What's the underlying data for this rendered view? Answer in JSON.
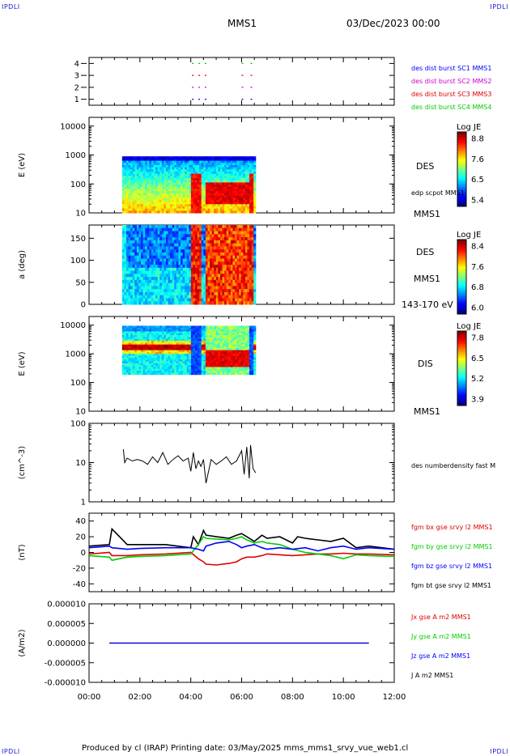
{
  "corner_labels": [
    "IPDLI",
    "IPDLI",
    "IPDLI",
    "IPDLI"
  ],
  "header": {
    "spacecraft": "MMS1",
    "datetime": "03/Dec/2023 00:00"
  },
  "footer": "Produced by cl (IRAP)   Printing date: 03/May/2025   mms_mms1_srvy_vue_web1.cl",
  "x_axis": {
    "ticks": [
      "00:00",
      "02:00",
      "04:00",
      "06:00",
      "08:00",
      "10:00",
      "12:00"
    ],
    "range_hours": [
      0,
      12
    ]
  },
  "colors": {
    "mms1": "#0000ff",
    "mms2": "#cc00cc",
    "mms3": "#dd0000",
    "mms4": "#00cc00",
    "bx": "#dd0000",
    "by": "#00cc00",
    "bz": "#0000ff",
    "bt": "#000000"
  },
  "chart_data": [
    {
      "type": "scatter",
      "panel": "burst",
      "yticks": [
        "1",
        "2",
        "3",
        "4"
      ],
      "ylim": [
        0.5,
        4.5
      ],
      "legend": [
        {
          "label": "des dist burst SC1 MMS1",
          "color": "#0000ff"
        },
        {
          "label": "des dist burst SC2 MMS2",
          "color": "#cc00cc"
        },
        {
          "label": "des dist burst SC3 MMS3",
          "color": "#dd0000"
        },
        {
          "label": "des dist burst SC4 MMS4",
          "color": "#00cc00"
        }
      ],
      "series": [
        {
          "name": "des dist burst SC1 MMS1",
          "y": 1,
          "intervals": [
            [
              4.05,
              4.15
            ],
            [
              4.3,
              4.4
            ],
            [
              4.55,
              4.65
            ],
            [
              6.0,
              6.15
            ],
            [
              6.35,
              6.45
            ]
          ],
          "color": "#0000ff"
        },
        {
          "name": "des dist burst SC2 MMS2",
          "y": 2,
          "intervals": [
            [
              4.05,
              4.15
            ],
            [
              4.3,
              4.4
            ],
            [
              4.55,
              4.65
            ],
            [
              6.0,
              6.15
            ],
            [
              6.35,
              6.45
            ]
          ],
          "color": "#cc00cc"
        },
        {
          "name": "des dist burst SC3 MMS3",
          "y": 3,
          "intervals": [
            [
              4.05,
              4.15
            ],
            [
              4.3,
              4.4
            ],
            [
              4.55,
              4.65
            ],
            [
              6.0,
              6.15
            ],
            [
              6.35,
              6.45
            ]
          ],
          "color": "#dd0000"
        },
        {
          "name": "des dist burst SC4 MMS4",
          "y": 4,
          "intervals": [
            [
              4.05,
              4.15
            ],
            [
              4.3,
              4.4
            ],
            [
              4.55,
              4.65
            ],
            [
              6.0,
              6.15
            ],
            [
              6.35,
              6.45
            ]
          ],
          "color": "#00cc00"
        }
      ]
    },
    {
      "type": "heatmap",
      "panel": "des-energy",
      "ylabel": "E (eV)",
      "yscale": "log",
      "ylim": [
        10,
        20000
      ],
      "yticks": [
        "10",
        "100",
        "1000",
        "10000"
      ],
      "side_labels": [
        "DES",
        "edp scpot MMS1",
        "MMS1"
      ],
      "colorbar": {
        "title": "Log JE",
        "ticks": [
          "8.8",
          "7.6",
          "6.5",
          "5.4"
        ],
        "range": [
          5.4,
          8.8
        ]
      },
      "data_range_hours": [
        1.3,
        6.55
      ]
    },
    {
      "type": "heatmap",
      "panel": "des-pitch",
      "ylabel": "a (deg)",
      "ylim": [
        0,
        180
      ],
      "yticks": [
        "0",
        "50",
        "100",
        "150"
      ],
      "side_labels": [
        "DES",
        "MMS1",
        "143-170 eV"
      ],
      "colorbar": {
        "title": "Log JE",
        "ticks": [
          "8.4",
          "7.6",
          "6.8",
          "6.0"
        ],
        "range": [
          6.0,
          8.4
        ]
      },
      "data_range_hours": [
        1.3,
        6.55
      ]
    },
    {
      "type": "heatmap",
      "panel": "dis-energy",
      "ylabel": "E (eV)",
      "yscale": "log",
      "ylim": [
        10,
        20000
      ],
      "yticks": [
        "10",
        "100",
        "1000",
        "10000"
      ],
      "side_labels": [
        "DIS",
        "MMS1"
      ],
      "colorbar": {
        "title": "Log JE",
        "ticks": [
          "7.8",
          "6.5",
          "5.2",
          "3.9"
        ],
        "range": [
          3.9,
          7.8
        ]
      },
      "data_range_hours": [
        1.3,
        6.55
      ]
    },
    {
      "type": "line",
      "panel": "density",
      "ylabel": "(cm^-3)",
      "yscale": "log",
      "ylim": [
        1,
        100
      ],
      "yticks": [
        "1",
        "10",
        "100"
      ],
      "legend": [
        {
          "label": "des numberdensity fast M",
          "color": "#000000"
        }
      ],
      "series": [
        {
          "name": "des numberdensity fast M",
          "x": [
            1.35,
            1.4,
            1.5,
            1.7,
            1.9,
            2.1,
            2.3,
            2.5,
            2.7,
            2.9,
            3.1,
            3.3,
            3.5,
            3.7,
            3.9,
            4.0,
            4.1,
            4.2,
            4.3,
            4.4,
            4.5,
            4.6,
            4.8,
            5.0,
            5.2,
            5.4,
            5.6,
            5.8,
            6.0,
            6.05,
            6.1,
            6.2,
            6.3,
            6.35,
            6.45,
            6.55
          ],
          "y": [
            22,
            10,
            13,
            11,
            12,
            11,
            9,
            14,
            10,
            18,
            9,
            12,
            15,
            11,
            13,
            6,
            18,
            7,
            11,
            8,
            12,
            3,
            12,
            9,
            11,
            14,
            9,
            11,
            20,
            10,
            5,
            25,
            4,
            28,
            7,
            5.5
          ]
        }
      ]
    },
    {
      "type": "line",
      "panel": "fgm",
      "ylabel": "(nT)",
      "ylim": [
        -50,
        50
      ],
      "yticks": [
        "-40",
        "-20",
        "0",
        "20",
        "40"
      ],
      "legend": [
        {
          "label": "fgm bx gse srvy l2 MMS1",
          "color": "#dd0000"
        },
        {
          "label": "fgm by gse srvy l2 MMS1",
          "color": "#00cc00"
        },
        {
          "label": "fgm bz gse srvy l2 MMS1",
          "color": "#0000ff"
        },
        {
          "label": "fgm bt gse srvy l2 MMS1",
          "color": "#000000"
        }
      ],
      "series": [
        {
          "name": "fgm bt gse srvy l2 MMS1",
          "x": [
            0,
            0.8,
            0.9,
            1.5,
            2.0,
            3.0,
            4.0,
            4.1,
            4.3,
            4.5,
            4.6,
            5.0,
            5.5,
            5.8,
            6.0,
            6.2,
            6.5,
            6.8,
            7.0,
            7.5,
            8.0,
            8.2,
            8.5,
            9.0,
            9.5,
            10.0,
            10.5,
            11.0,
            12.0
          ],
          "y": [
            8,
            10,
            30,
            10,
            10,
            10,
            6,
            20,
            10,
            28,
            22,
            20,
            18,
            22,
            24,
            20,
            14,
            22,
            18,
            20,
            12,
            20,
            18,
            16,
            14,
            18,
            6,
            8,
            4
          ]
        },
        {
          "name": "fgm bx gse srvy l2 MMS1",
          "x": [
            0,
            0.8,
            0.9,
            1.5,
            2.0,
            3.0,
            4.0,
            4.3,
            4.5,
            4.6,
            5.0,
            5.5,
            5.8,
            6.0,
            6.2,
            6.5,
            6.8,
            7.0,
            7.5,
            8.0,
            8.5,
            9.0,
            9.5,
            10.0,
            10.5,
            11.0,
            12.0
          ],
          "y": [
            -2,
            0,
            -4,
            -4,
            -3,
            -2,
            0,
            -8,
            -12,
            -15,
            -16,
            -14,
            -12,
            -8,
            -6,
            -6,
            -4,
            -2,
            -3,
            -4,
            -3,
            -2,
            -2,
            -1,
            -2,
            -2,
            -3
          ]
        },
        {
          "name": "fgm by gse srvy l2 MMS1",
          "x": [
            0,
            0.8,
            0.9,
            1.5,
            2.0,
            3.0,
            4.0,
            4.3,
            4.5,
            4.6,
            5.0,
            5.5,
            5.8,
            6.0,
            6.2,
            6.5,
            6.8,
            7.0,
            7.5,
            8.0,
            8.5,
            9.0,
            9.5,
            10.0,
            10.5,
            11.0,
            12.0
          ],
          "y": [
            -4,
            -6,
            -10,
            -6,
            -5,
            -4,
            -2,
            10,
            20,
            18,
            17,
            16,
            18,
            20,
            16,
            12,
            14,
            12,
            10,
            4,
            0,
            -2,
            -4,
            -8,
            -3,
            -4,
            -5
          ]
        },
        {
          "name": "fgm bz gse srvy l2 MMS1",
          "x": [
            0,
            0.8,
            0.9,
            1.5,
            2.0,
            3.0,
            4.0,
            4.3,
            4.5,
            4.6,
            5.0,
            5.5,
            5.8,
            6.0,
            6.2,
            6.5,
            6.8,
            7.0,
            7.5,
            8.0,
            8.5,
            9.0,
            9.5,
            10.0,
            10.5,
            11.0,
            12.0
          ],
          "y": [
            6,
            8,
            6,
            4,
            5,
            6,
            6,
            4,
            2,
            8,
            12,
            14,
            10,
            6,
            8,
            10,
            6,
            4,
            6,
            4,
            6,
            2,
            6,
            8,
            4,
            6,
            4
          ]
        }
      ]
    },
    {
      "type": "line",
      "panel": "current",
      "ylabel": "(A/m2)",
      "ylim": [
        -1e-05,
        1e-05
      ],
      "yticks": [
        "-0.000010",
        "-0.000005",
        "0.000000",
        "0.000005",
        "0.000010"
      ],
      "legend": [
        {
          "label": "Jx gse A m2 MMS1",
          "color": "#dd0000"
        },
        {
          "label": "Jy gse A m2 MMS1",
          "color": "#00cc00"
        },
        {
          "label": "Jz gse A m2 MMS1",
          "color": "#0000ff"
        },
        {
          "label": "J A m2 MMS1",
          "color": "#000000"
        }
      ],
      "series": [
        {
          "name": "J A m2 MMS1",
          "x": [
            0.8,
            11.0
          ],
          "y": [
            0,
            0
          ]
        },
        {
          "name": "Jz gse A m2 MMS1",
          "x": [
            0.8,
            11.0
          ],
          "y": [
            0,
            0
          ]
        }
      ]
    }
  ]
}
